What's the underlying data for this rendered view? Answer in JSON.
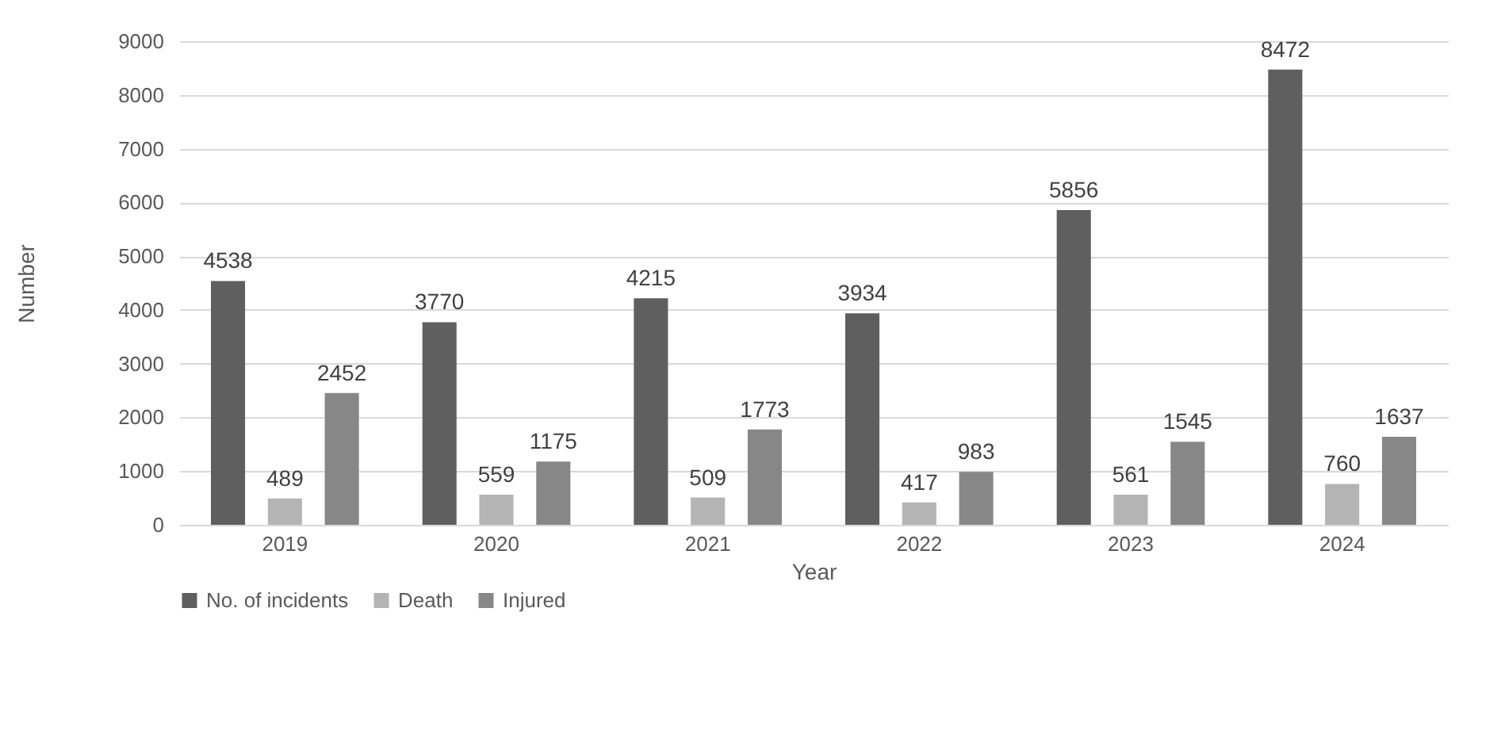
{
  "chart_data": {
    "type": "bar",
    "xlabel": "Year",
    "ylabel": "Number",
    "categories": [
      "2019",
      "2020",
      "2021",
      "2022",
      "2023",
      "2024"
    ],
    "series": [
      {
        "name": "No. of incidents",
        "color": "#5f5f5f",
        "values": [
          4538,
          3770,
          4215,
          3934,
          5856,
          8472
        ]
      },
      {
        "name": "Death",
        "color": "#b4b4b4",
        "values": [
          489,
          559,
          509,
          417,
          561,
          760
        ]
      },
      {
        "name": "Injured",
        "color": "#878787",
        "values": [
          2452,
          1175,
          1773,
          983,
          1545,
          1637
        ]
      }
    ],
    "ylim": [
      0,
      9000
    ],
    "yticks": [
      0,
      1000,
      2000,
      3000,
      4000,
      5000,
      6000,
      7000,
      8000,
      9000
    ],
    "grid": "y",
    "legend": "bottom",
    "data_labels": true
  }
}
